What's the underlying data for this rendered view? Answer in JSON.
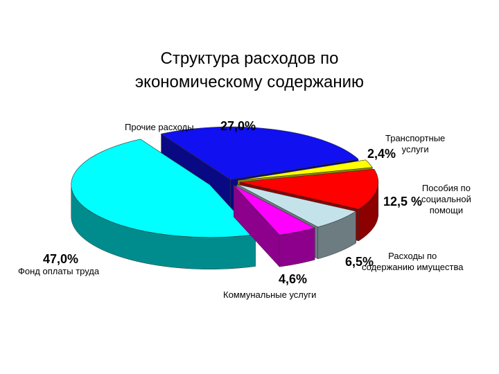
{
  "chart_data": {
    "type": "pie3d",
    "title": "Структура расходов по\nэкономическому содержанию",
    "categories": [
      "Прочие расходы",
      "Транспортные\nуслуги",
      "Пособия по\nсоциальной\nпомощи",
      "Расходы по\nсодержанию имущества",
      "Коммунальные услуги",
      "Фонд оплаты труда"
    ],
    "values": [
      27.0,
      2.4,
      12.5,
      6.5,
      4.6,
      47.0
    ],
    "value_labels": [
      "27,0%",
      "2,4%",
      "12,5 %",
      "6,5%",
      "4,6%",
      "47,0%"
    ],
    "colors": [
      "#1010f0",
      "#ffff00",
      "#ff0000",
      "#c4e2ea",
      "#ff00ff",
      "#00ffff"
    ]
  }
}
